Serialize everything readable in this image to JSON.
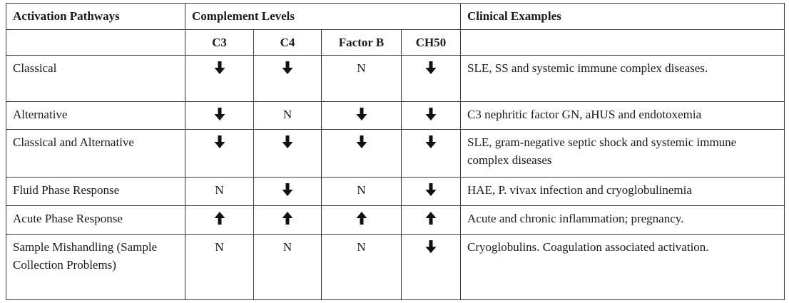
{
  "header": {
    "pathway": "Activation Pathways",
    "levels": "Complement Levels",
    "clinical": "Clinical Examples",
    "sub": [
      "C3",
      "C4",
      "Factor B",
      "CH50"
    ]
  },
  "rows": [
    {
      "pathway": "Classical",
      "c3": "down",
      "c4": "down",
      "factor_b": "N",
      "ch50": "down",
      "clinical": "SLE, SS and systemic immune complex diseases."
    },
    {
      "pathway": "Alternative",
      "c3": "down",
      "c4": "N",
      "factor_b": "down",
      "ch50": "down",
      "clinical": "C3 nephritic factor GN, aHUS and endotoxemia"
    },
    {
      "pathway": "Classical and Alternative",
      "c3": "down",
      "c4": "down",
      "factor_b": "down",
      "ch50": "down",
      "clinical": "SLE, gram-negative septic shock and systemic immune complex diseases"
    },
    {
      "pathway": "Fluid Phase Response",
      "c3": "N",
      "c4": "down",
      "factor_b": "N",
      "ch50": "down",
      "clinical": "HAE, P. vivax infection and cryoglobulinemia"
    },
    {
      "pathway": "Acute Phase Response",
      "c3": "up",
      "c4": "up",
      "factor_b": "up",
      "ch50": "up",
      "clinical": "Acute and chronic inflammation; pregnancy."
    },
    {
      "pathway": "Sample Mishandling (Sample Collection Problems)",
      "c3": "N",
      "c4": "N",
      "factor_b": "N",
      "ch50": "down",
      "clinical": "Cryoglobulins. Coagulation associated activation."
    }
  ],
  "icons": {
    "down": "arrow-down-icon",
    "up": "arrow-up-icon"
  },
  "colors": {
    "border": "#3a3a3a",
    "text": "#1a1a1a",
    "background": "#ffffff"
  }
}
